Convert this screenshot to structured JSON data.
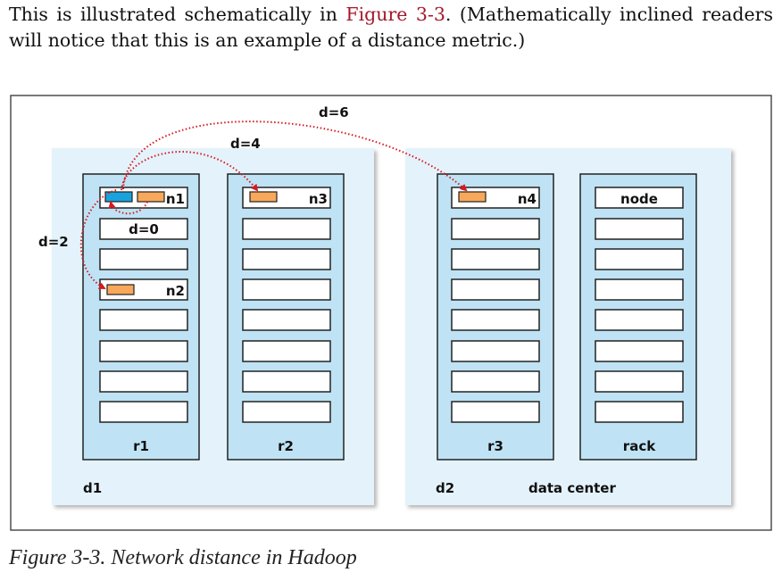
{
  "paragraph": {
    "before_link": "This is illustrated schematically in ",
    "link_text": "Figure 3-3",
    "after_link": ". (Mathematically inclined readers will notice that this is an example of a distance metric.)"
  },
  "diagram": {
    "data_centers": [
      {
        "label": "d1",
        "racks": [
          {
            "label": "r1"
          },
          {
            "label": "r2"
          }
        ]
      },
      {
        "label": "d2",
        "racks": [
          {
            "label": "r3"
          },
          {
            "label": "rack"
          }
        ]
      }
    ],
    "nodes": {
      "n1": "n1",
      "n2": "n2",
      "n3": "n3",
      "n4": "n4",
      "legend_node": "node"
    },
    "legend": {
      "data_center": "data center"
    },
    "distances": {
      "d0": "d=0",
      "d2": "d=2",
      "d4": "d=4",
      "d6": "d=6"
    },
    "colors": {
      "frame": "#333333",
      "datacenter_fill": "#e4f3fb",
      "rack_fill": "#bfe3f5",
      "process_orange": "#f8a85a",
      "process_blue": "#1aa2dc",
      "arrow_red": "#d7191f"
    }
  },
  "caption": "Figure 3-3. Network distance in Hadoop"
}
